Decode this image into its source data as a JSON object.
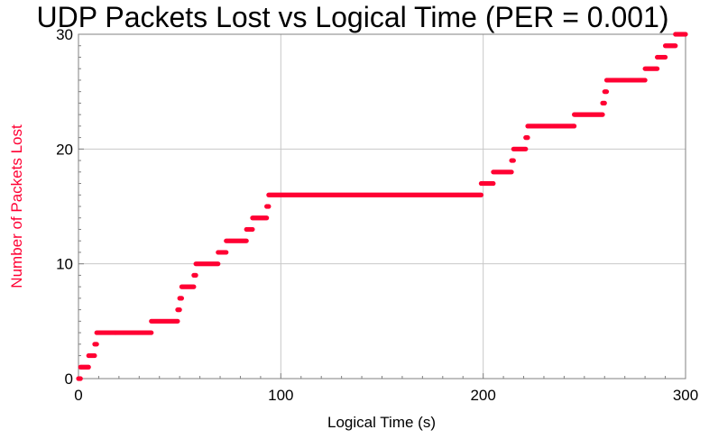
{
  "chart_data": {
    "type": "scatter",
    "title": "UDP Packets Lost vs Logical Time (PER = 0.001)",
    "xlabel": "Logical Time (s)",
    "ylabel": "Number of Packets Lost",
    "xlim": [
      0,
      300
    ],
    "ylim": [
      0,
      30
    ],
    "x_ticks": [
      0,
      100,
      200,
      300
    ],
    "y_ticks": [
      0,
      10,
      20,
      30
    ],
    "grid": true,
    "series_color": "#FF0033",
    "ylabel_color": "#FF0033",
    "steps": [
      {
        "x_start": 0,
        "x_end": 1,
        "y": 0
      },
      {
        "x_start": 1,
        "x_end": 5,
        "y": 1
      },
      {
        "x_start": 5,
        "x_end": 8,
        "y": 2
      },
      {
        "x_start": 8,
        "x_end": 9,
        "y": 3
      },
      {
        "x_start": 9,
        "x_end": 36,
        "y": 4
      },
      {
        "x_start": 36,
        "x_end": 49,
        "y": 5
      },
      {
        "x_start": 49,
        "x_end": 50,
        "y": 6
      },
      {
        "x_start": 50,
        "x_end": 51,
        "y": 7
      },
      {
        "x_start": 51,
        "x_end": 57,
        "y": 8
      },
      {
        "x_start": 57,
        "x_end": 58,
        "y": 9
      },
      {
        "x_start": 58,
        "x_end": 69,
        "y": 10
      },
      {
        "x_start": 69,
        "x_end": 73,
        "y": 11
      },
      {
        "x_start": 73,
        "x_end": 83,
        "y": 12
      },
      {
        "x_start": 83,
        "x_end": 86,
        "y": 13
      },
      {
        "x_start": 86,
        "x_end": 93,
        "y": 14
      },
      {
        "x_start": 93,
        "x_end": 94,
        "y": 15
      },
      {
        "x_start": 94,
        "x_end": 199,
        "y": 16
      },
      {
        "x_start": 199,
        "x_end": 205,
        "y": 17
      },
      {
        "x_start": 205,
        "x_end": 214,
        "y": 18
      },
      {
        "x_start": 214,
        "x_end": 215,
        "y": 19
      },
      {
        "x_start": 215,
        "x_end": 221,
        "y": 20
      },
      {
        "x_start": 221,
        "x_end": 222,
        "y": 21
      },
      {
        "x_start": 222,
        "x_end": 245,
        "y": 22
      },
      {
        "x_start": 245,
        "x_end": 259,
        "y": 23
      },
      {
        "x_start": 259,
        "x_end": 260,
        "y": 24
      },
      {
        "x_start": 260,
        "x_end": 261,
        "y": 25
      },
      {
        "x_start": 261,
        "x_end": 280,
        "y": 26
      },
      {
        "x_start": 280,
        "x_end": 286,
        "y": 27
      },
      {
        "x_start": 286,
        "x_end": 290,
        "y": 28
      },
      {
        "x_start": 290,
        "x_end": 295,
        "y": 29
      },
      {
        "x_start": 295,
        "x_end": 300,
        "y": 30
      }
    ]
  }
}
